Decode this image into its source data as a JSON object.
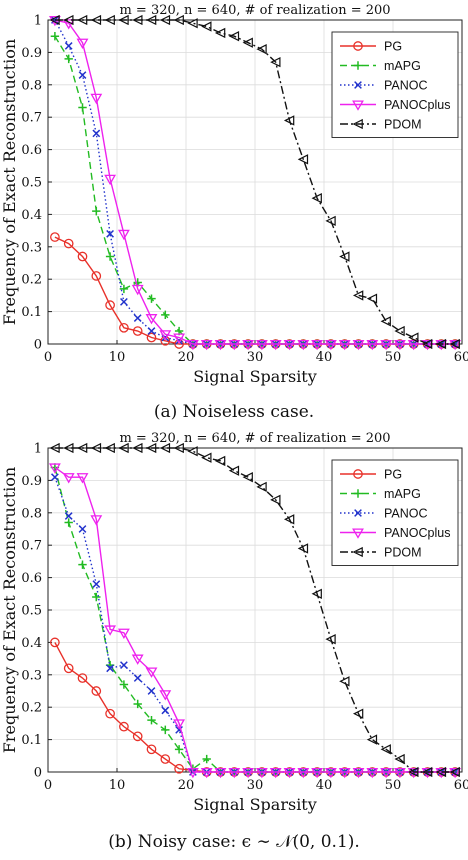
{
  "chart_data": [
    {
      "type": "line",
      "title": "m = 320, n = 640, # of realization = 200",
      "xlabel": "Signal Sparsity",
      "ylabel": "Frequency of Exact Reconstruction",
      "xlim": [
        0,
        60
      ],
      "ylim": [
        0,
        1
      ],
      "xticks": [
        "0",
        "10",
        "20",
        "30",
        "40",
        "50",
        "60"
      ],
      "yticks": [
        "0",
        "0.1",
        "0.2",
        "0.3",
        "0.4",
        "0.5",
        "0.6",
        "0.7",
        "0.8",
        "0.9",
        "1"
      ],
      "grid": true,
      "legend": "top-right",
      "series": [
        {
          "name": "PG",
          "color": "#e8312a",
          "dash": "solid",
          "marker": "circle",
          "x": [
            1,
            3,
            5,
            7,
            9,
            11,
            13,
            15,
            17,
            19
          ],
          "y": [
            0.33,
            0.31,
            0.27,
            0.21,
            0.12,
            0.05,
            0.04,
            0.02,
            0.01,
            0.0
          ]
        },
        {
          "name": "mAPG",
          "color": "#22bb22",
          "dash": "dashed",
          "marker": "plus",
          "x": [
            1,
            3,
            5,
            7,
            9,
            11,
            13,
            15,
            17,
            19
          ],
          "y": [
            0.95,
            0.88,
            0.73,
            0.41,
            0.27,
            0.17,
            0.19,
            0.14,
            0.09,
            0.04
          ]
        },
        {
          "name": "PANOC",
          "color": "#2233cc",
          "dash": "dotted",
          "marker": "x",
          "x": [
            1,
            3,
            5,
            7,
            9,
            11,
            13,
            15,
            17,
            19
          ],
          "y": [
            1.0,
            0.92,
            0.83,
            0.65,
            0.34,
            0.13,
            0.08,
            0.04,
            0.02,
            0.01
          ]
        },
        {
          "name": "PANOCplus",
          "color": "#ee22ee",
          "dash": "solid",
          "marker": "triangle-down",
          "x": [
            1,
            3,
            5,
            7,
            9,
            11,
            13,
            15,
            17,
            19
          ],
          "y": [
            1.0,
            0.99,
            0.93,
            0.76,
            0.51,
            0.34,
            0.17,
            0.08,
            0.03,
            0.02
          ]
        },
        {
          "name": "PDOM",
          "color": "#111111",
          "dash": "dashdot",
          "marker": "triangle-left",
          "x": [
            1,
            3,
            5,
            7,
            9,
            11,
            13,
            15,
            17,
            19,
            21,
            23,
            25,
            27,
            29,
            31,
            33,
            35,
            37,
            39,
            41,
            43,
            45,
            47,
            49,
            51,
            53,
            55,
            57,
            59
          ],
          "y": [
            1.0,
            1.0,
            1.0,
            1.0,
            1.0,
            1.0,
            1.0,
            1.0,
            1.0,
            1.0,
            0.99,
            0.98,
            0.96,
            0.95,
            0.93,
            0.91,
            0.87,
            0.69,
            0.57,
            0.45,
            0.38,
            0.27,
            0.15,
            0.14,
            0.07,
            0.04,
            0.02,
            0.0,
            0.0,
            0.0
          ]
        }
      ],
      "zero_tail": {
        "x_from": 21,
        "x_to": 59,
        "step": 2
      }
    },
    {
      "type": "line",
      "title": "m = 320, n = 640, # of realization = 200",
      "xlabel": "Signal Sparsity",
      "ylabel": "Frequency of Exact Reconstruction",
      "xlim": [
        0,
        60
      ],
      "ylim": [
        0,
        1
      ],
      "xticks": [
        "0",
        "10",
        "20",
        "30",
        "40",
        "50",
        "60"
      ],
      "yticks": [
        "0",
        "0.1",
        "0.2",
        "0.3",
        "0.4",
        "0.5",
        "0.6",
        "0.7",
        "0.8",
        "0.9",
        "1"
      ],
      "grid": true,
      "legend": "top-right",
      "series": [
        {
          "name": "PG",
          "color": "#e8312a",
          "dash": "solid",
          "marker": "circle",
          "x": [
            1,
            3,
            5,
            7,
            9,
            11,
            13,
            15,
            17,
            19
          ],
          "y": [
            0.4,
            0.32,
            0.29,
            0.25,
            0.18,
            0.14,
            0.11,
            0.07,
            0.04,
            0.01
          ]
        },
        {
          "name": "mAPG",
          "color": "#22bb22",
          "dash": "dashed",
          "marker": "plus",
          "x": [
            1,
            3,
            5,
            7,
            9,
            11,
            13,
            15,
            17,
            19,
            21,
            23
          ],
          "y": [
            0.94,
            0.77,
            0.64,
            0.54,
            0.33,
            0.27,
            0.21,
            0.16,
            0.13,
            0.07,
            0.01,
            0.04
          ]
        },
        {
          "name": "PANOC",
          "color": "#2233cc",
          "dash": "dotted",
          "marker": "x",
          "x": [
            1,
            3,
            5,
            7,
            9,
            11,
            13,
            15,
            17,
            19,
            21
          ],
          "y": [
            0.91,
            0.79,
            0.75,
            0.58,
            0.32,
            0.33,
            0.29,
            0.25,
            0.19,
            0.13,
            0.0
          ]
        },
        {
          "name": "PANOCplus",
          "color": "#ee22ee",
          "dash": "solid",
          "marker": "triangle-down",
          "x": [
            1,
            3,
            5,
            7,
            9,
            11,
            13,
            15,
            17,
            19,
            21
          ],
          "y": [
            0.94,
            0.91,
            0.91,
            0.78,
            0.44,
            0.43,
            0.35,
            0.31,
            0.24,
            0.15,
            0.0
          ]
        },
        {
          "name": "PDOM",
          "color": "#111111",
          "dash": "dashdot",
          "marker": "triangle-left",
          "x": [
            1,
            3,
            5,
            7,
            9,
            11,
            13,
            15,
            17,
            19,
            21,
            23,
            25,
            27,
            29,
            31,
            33,
            35,
            37,
            39,
            41,
            43,
            45,
            47,
            49,
            51,
            53,
            55,
            57,
            59
          ],
          "y": [
            1.0,
            1.0,
            1.0,
            1.0,
            1.0,
            1.0,
            1.0,
            1.0,
            1.0,
            1.0,
            0.99,
            0.97,
            0.96,
            0.93,
            0.91,
            0.88,
            0.84,
            0.78,
            0.69,
            0.55,
            0.41,
            0.28,
            0.18,
            0.1,
            0.07,
            0.04,
            0.0,
            0.0,
            0.0,
            0.0
          ]
        }
      ],
      "zero_tail": {
        "x_from": 23,
        "x_to": 59,
        "step": 2
      }
    }
  ],
  "captions": [
    "(a) Noiseless case.",
    "(b) Noisy case: ϵ ∼ 𝒩(0, 0.1)."
  ]
}
